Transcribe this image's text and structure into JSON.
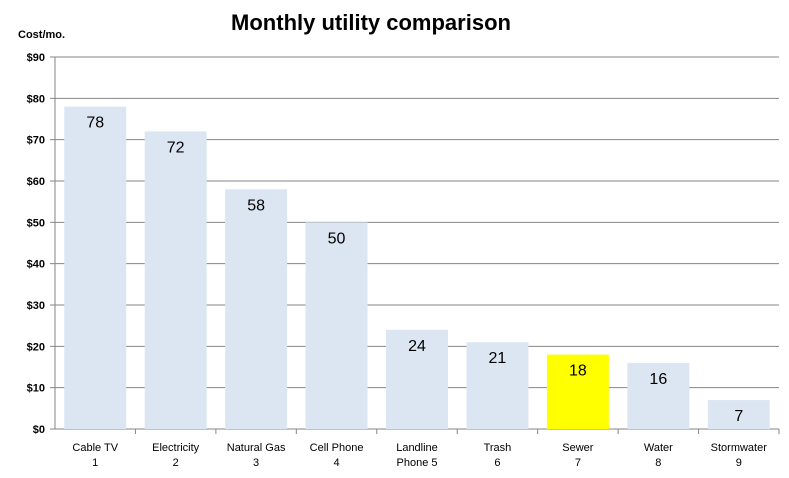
{
  "chart_data": {
    "type": "bar",
    "title": "Monthly utility comparison",
    "ylabel": "Cost/mo.",
    "xlabel": "",
    "ylim": [
      0,
      90
    ],
    "yticks": [
      0,
      10,
      20,
      30,
      40,
      50,
      60,
      70,
      80,
      90
    ],
    "ytick_labels": [
      "$0",
      "$10",
      "$20",
      "$30",
      "$40",
      "$50",
      "$60",
      "$70",
      "$80",
      "$90"
    ],
    "categories": [
      [
        "Cable TV",
        "1"
      ],
      [
        "Electricity",
        "2"
      ],
      [
        "Natural Gas",
        "3"
      ],
      [
        "Cell Phone",
        "4"
      ],
      [
        "Landline",
        "Phone 5"
      ],
      [
        "Trash",
        "6"
      ],
      [
        "Sewer",
        "7"
      ],
      [
        "Water",
        "8"
      ],
      [
        "Stormwater",
        "9"
      ]
    ],
    "values": [
      78,
      72,
      58,
      50,
      24,
      21,
      18,
      16,
      7
    ],
    "data_labels": [
      "78",
      "72",
      "58",
      "50",
      "24",
      "21",
      "18",
      "16",
      "7"
    ],
    "highlight_index": 6,
    "grid": true,
    "legend": "none",
    "colors": {
      "bar": "#dce6f2",
      "highlight": "#ffff00",
      "grid": "#868686",
      "axis": "#868686"
    }
  }
}
